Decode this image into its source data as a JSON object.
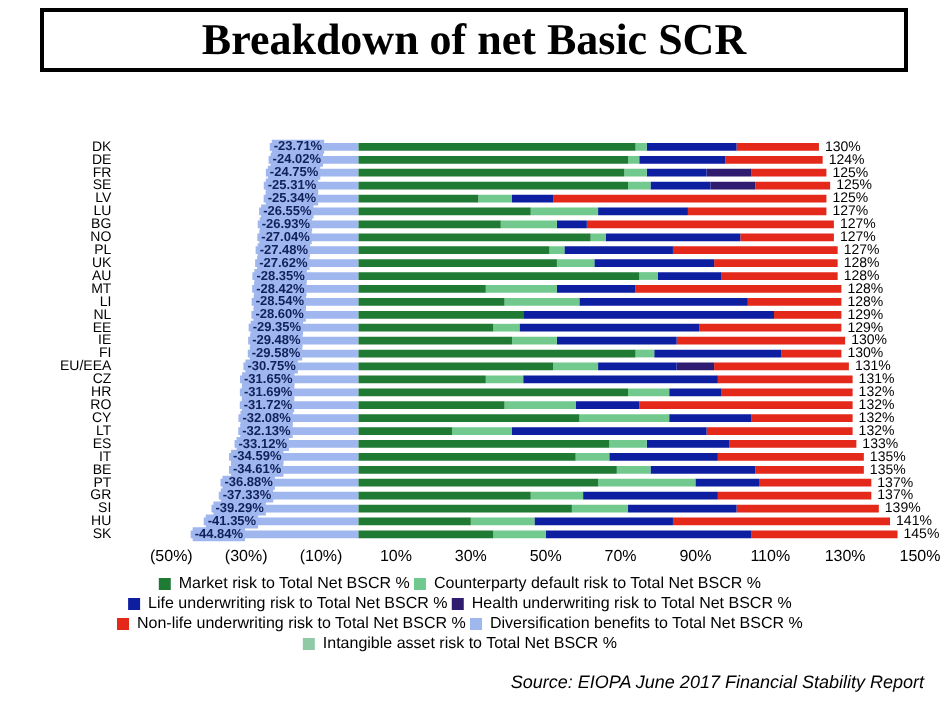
{
  "chart_data": {
    "type": "bar",
    "orientation": "horizontal",
    "stacked": true,
    "title": "Breakdown of net Basic SCR",
    "categories": [
      "DK",
      "DE",
      "FR",
      "SE",
      "LV",
      "LU",
      "BG",
      "NO",
      "PL",
      "UK",
      "AU",
      "MT",
      "LI",
      "NL",
      "EE",
      "IE",
      "FI",
      "EU/EEA",
      "CZ",
      "HR",
      "RO",
      "CY",
      "LT",
      "ES",
      "IT",
      "BE",
      "PT",
      "GR",
      "SI",
      "HU",
      "SK"
    ],
    "series": [
      {
        "name": "Market risk to Total Net BSCR %",
        "color": "#1f7a33",
        "values": [
          74,
          72,
          71,
          72,
          32,
          46,
          38,
          62,
          51,
          53,
          75,
          34,
          39,
          44,
          36,
          41,
          74,
          52,
          34,
          72,
          39,
          59,
          25,
          67,
          58,
          69,
          64,
          46,
          57,
          30,
          36
        ]
      },
      {
        "name": "Counterparty default risk to Total Net BSCR %",
        "color": "#72c98e",
        "values": [
          3,
          3,
          6,
          6,
          9,
          18,
          15,
          4,
          4,
          10,
          5,
          19,
          20,
          0,
          7,
          12,
          5,
          12,
          10,
          11,
          19,
          24,
          16,
          10,
          9,
          9,
          26,
          14,
          15,
          17,
          14
        ]
      },
      {
        "name": "Life underwriting risk to Total Net BSCR %",
        "color": "#0d1ea0",
        "values": [
          24,
          23,
          16,
          16,
          11,
          24,
          8,
          36,
          29,
          32,
          17,
          21,
          45,
          67,
          48,
          32,
          34,
          21,
          52,
          14,
          17,
          22,
          52,
          22,
          29,
          28,
          17,
          36,
          29,
          37,
          55
        ]
      },
      {
        "name": "Health underwriting risk to Total Net BSCR %",
        "color": "#2f1c70",
        "values": [
          0,
          0,
          12,
          12,
          0,
          0,
          0,
          0,
          0,
          0,
          0,
          0,
          0,
          0,
          0,
          0,
          0,
          10,
          0,
          0,
          0,
          0,
          0,
          0,
          0,
          0,
          0,
          0,
          0,
          0,
          0
        ]
      },
      {
        "name": "Non-life underwriting risk to Total Net BSCR %",
        "color": "#e4281a",
        "values": [
          22,
          26,
          20,
          20,
          73,
          37,
          66,
          25,
          44,
          33,
          31,
          55,
          25,
          18,
          38,
          45,
          16,
          36,
          36,
          35,
          57,
          27,
          39,
          34,
          39,
          29,
          30,
          41,
          38,
          58,
          39
        ]
      },
      {
        "name": "Diversification benefits to Total Net BSCR %",
        "color": "#9fb6ef",
        "values": [
          -23.71,
          -24.02,
          -24.75,
          -25.31,
          -25.34,
          -26.55,
          -26.93,
          -27.04,
          -27.48,
          -27.62,
          -28.35,
          -28.42,
          -28.54,
          -28.6,
          -29.35,
          -29.48,
          -29.58,
          -30.75,
          -31.65,
          -31.69,
          -31.72,
          -32.08,
          -32.13,
          -33.12,
          -34.59,
          -34.61,
          -36.88,
          -37.33,
          -39.29,
          -41.35,
          -44.84
        ],
        "value_labels": [
          "-23.71%",
          "-24.02%",
          "-24.75%",
          "-25.31%",
          "-25.34%",
          "-26.55%",
          "-26.93%",
          "-27.04%",
          "-27.48%",
          "-27.62%",
          "-28.35%",
          "-28.42%",
          "-28.54%",
          "-28.60%",
          "-29.35%",
          "-29.48%",
          "-29.58%",
          "-30.75%",
          "-31.65%",
          "-31.69%",
          "-31.72%",
          "-32.08%",
          "-32.13%",
          "-33.12%",
          "-34.59%",
          "-34.61%",
          "-36.88%",
          "-37.33%",
          "-39.29%",
          "-41.35%",
          "-44.84%"
        ]
      },
      {
        "name": "Intangible asset risk to Total Net BSCR %",
        "color": "#8fc9a6",
        "values": [
          0,
          0,
          0,
          0,
          0,
          0,
          0,
          0,
          0,
          0,
          0,
          0,
          0,
          0,
          0,
          0,
          0,
          0,
          0,
          0,
          0,
          0,
          0,
          0,
          0,
          0,
          0,
          0,
          0,
          0,
          0
        ]
      }
    ],
    "xlim": [
      -50,
      150
    ],
    "xticks": [
      {
        "value": -50,
        "label": "(50%)"
      },
      {
        "value": -30,
        "label": "(30%)"
      },
      {
        "value": -10,
        "label": "(10%)"
      },
      {
        "value": 10,
        "label": "10%"
      },
      {
        "value": 30,
        "label": "30%"
      },
      {
        "value": 50,
        "label": "50%"
      },
      {
        "value": 70,
        "label": "70%"
      },
      {
        "value": 90,
        "label": "90%"
      },
      {
        "value": 110,
        "label": "110%"
      },
      {
        "value": 130,
        "label": "130%"
      },
      {
        "value": 150,
        "label": "150%"
      }
    ],
    "grid": false,
    "legend": "bottom",
    "annotations": [
      "130%",
      "124%",
      "125%",
      "125%",
      "125%",
      "127%",
      "127%",
      "127%",
      "127%",
      "128%",
      "128%",
      "128%",
      "128%",
      "129%",
      "129%",
      "130%",
      "130%",
      "131%",
      "131%",
      "132%",
      "132%",
      "132%",
      "132%",
      "133%",
      "135%",
      "135%",
      "137%",
      "137%",
      "139%",
      "141%",
      "145%",
      "Source:  EIOPA June 2017 Financial Stability Report"
    ]
  }
}
